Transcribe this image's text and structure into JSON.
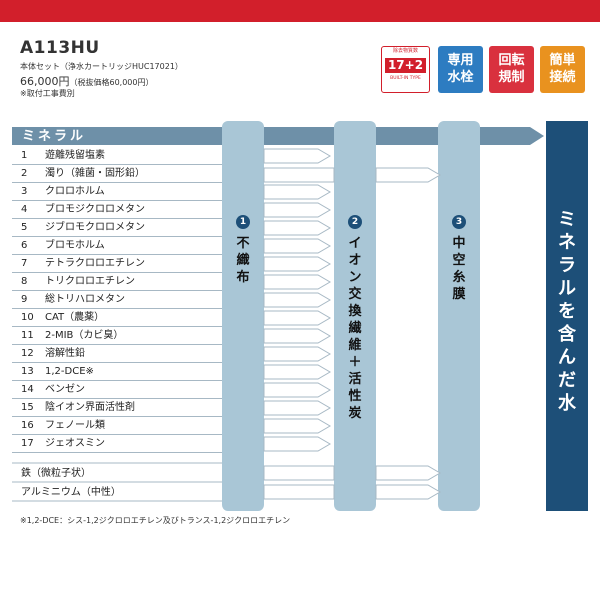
{
  "model": "A113HU",
  "set_line": "本体セット（浄水カートリッジHUC17021）",
  "price": "66,000円",
  "price_tax": "（税抜価格60,000円）",
  "install_note": "※取付工事費別",
  "badges": {
    "main_top": "除去物質数",
    "main_number": "17+2",
    "main_bottom": "BUILT-IN TYPE",
    "blue": [
      "専用",
      "水栓"
    ],
    "red": [
      "回転",
      "規制"
    ],
    "orange": [
      "簡単",
      "接続"
    ]
  },
  "colors": {
    "brand_red": "#d21f2b",
    "band": "#6e90a8",
    "column": "#a9c6d6",
    "final": "#1d4f78",
    "blue_badge": "#2d7cc1",
    "orange_badge": "#e9921f"
  },
  "header": "ミネラル",
  "items": [
    {
      "n": "1",
      "name": "遊離残留塩素"
    },
    {
      "n": "2",
      "name": "濁り（雑菌・固形鉛）"
    },
    {
      "n": "3",
      "name": "クロロホルム"
    },
    {
      "n": "4",
      "name": "ブロモジクロロメタン"
    },
    {
      "n": "5",
      "name": "ジブロモクロロメタン"
    },
    {
      "n": "6",
      "name": "ブロモホルム"
    },
    {
      "n": "7",
      "name": "テトラクロロエチレン"
    },
    {
      "n": "8",
      "name": "トリクロロエチレン"
    },
    {
      "n": "9",
      "name": "総トリハロメタン"
    },
    {
      "n": "10",
      "name": "CAT（農薬）"
    },
    {
      "n": "11",
      "name": "2-MIB（カビ臭）"
    },
    {
      "n": "12",
      "name": "溶解性鉛"
    },
    {
      "n": "13",
      "name": "1,2-DCE※"
    },
    {
      "n": "14",
      "name": "ベンゼン"
    },
    {
      "n": "15",
      "name": "陰イオン界面活性剤"
    },
    {
      "n": "16",
      "name": "フェノール類"
    },
    {
      "n": "17",
      "name": "ジェオスミン"
    }
  ],
  "extras": [
    "鉄（微粒子状）",
    "アルミニウム（中性）"
  ],
  "filters": [
    {
      "num": "1",
      "label": [
        "不",
        "織",
        "布"
      ]
    },
    {
      "num": "2",
      "label": [
        "イ",
        "オ",
        "ン",
        "交",
        "換",
        "繊",
        "維",
        "＋",
        "活",
        "性",
        "炭"
      ]
    },
    {
      "num": "3",
      "label": [
        "中",
        "空",
        "糸",
        "膜"
      ]
    }
  ],
  "final_label": [
    "ミ",
    "ネ",
    "ラ",
    "ル",
    "を",
    "含",
    "ん",
    "だ",
    "水"
  ],
  "footnote": "※1,2-DCE：シス-1,2ジクロロエチレン及びトランス-1,2ジクロロエチレン"
}
